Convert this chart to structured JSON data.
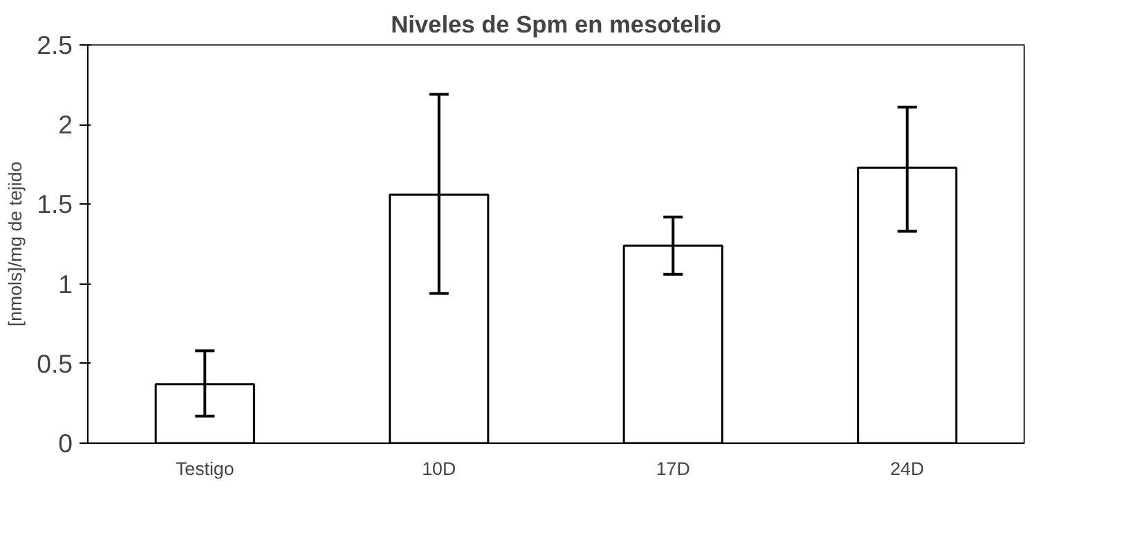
{
  "chart_data": {
    "type": "bar",
    "title": "Niveles de Spm en mesotelio",
    "ylabel": "[nmols]/mg de tejido",
    "categories": [
      "Testigo",
      "10D",
      "17D",
      "24D"
    ],
    "values": [
      0.37,
      1.56,
      1.24,
      1.73
    ],
    "errors": [
      [
        0.17,
        0.58
      ],
      [
        0.94,
        2.19
      ],
      [
        1.06,
        1.42
      ],
      [
        1.33,
        2.11
      ]
    ],
    "color": "#ffffff",
    "ylim": [
      0,
      2.5
    ],
    "yticks": [
      0,
      0.5,
      1,
      1.5,
      2,
      2.5
    ],
    "grid": false
  }
}
